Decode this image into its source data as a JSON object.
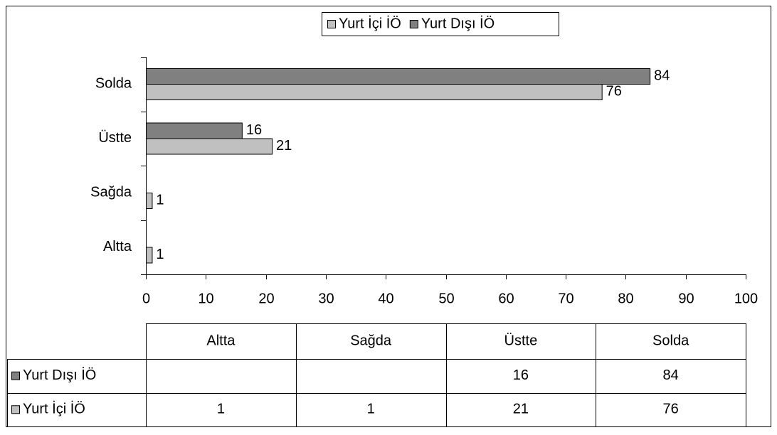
{
  "chart_data": {
    "type": "bar",
    "orientation": "horizontal",
    "categories": [
      "Altta",
      "Sağda",
      "Üstte",
      "Solda"
    ],
    "series": [
      {
        "name": "Yurt İçi İÖ",
        "color": "#c0c0c0",
        "values": [
          1,
          1,
          21,
          76
        ]
      },
      {
        "name": "Yurt Dışı İÖ",
        "color": "#808080",
        "values": [
          null,
          null,
          16,
          84
        ]
      }
    ],
    "xlim": [
      0,
      100
    ],
    "xticks": [
      0,
      10,
      20,
      30,
      40,
      50,
      60,
      70,
      80,
      90,
      100
    ],
    "legend": "top",
    "data_table": true
  }
}
